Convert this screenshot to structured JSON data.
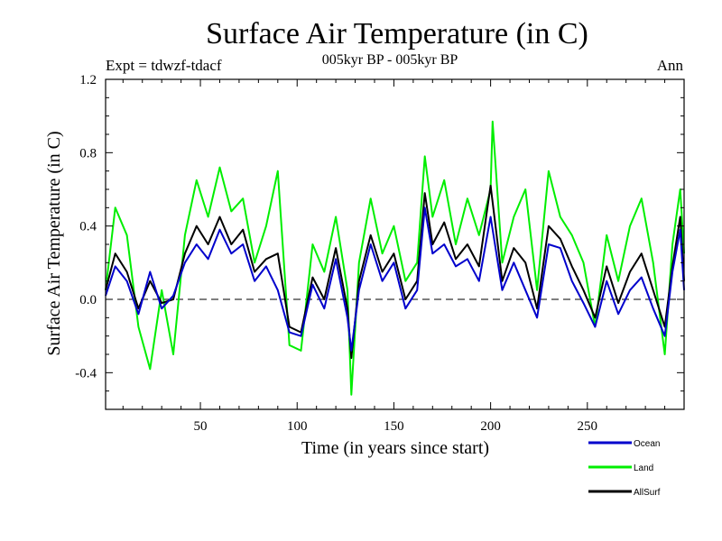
{
  "chart_data": {
    "type": "line",
    "title": "Surface Air Temperature (in C)",
    "subtitle": "005kyr BP - 005kyr BP",
    "experiment_label": "Expt = tdwzf-tdacf",
    "season_label": "Ann",
    "xlabel": "Time (in years since start)",
    "ylabel": "Surface Air Temperature (in C)",
    "xlim": [
      1,
      300
    ],
    "ylim": [
      -0.6,
      1.2
    ],
    "x_ticks": [
      50,
      100,
      150,
      200,
      250
    ],
    "x_tick_labels": [
      "50",
      "100",
      "150",
      "200",
      "250"
    ],
    "y_ticks": [
      -0.4,
      0.0,
      0.4,
      0.8,
      1.2
    ],
    "y_tick_labels": [
      "-0.4",
      "0.0",
      "0.4",
      "0.8",
      "1.2"
    ],
    "reference_line": 0.0,
    "legend_position": "bottom-right",
    "series": [
      {
        "name": "Ocean",
        "color": "#0000cc",
        "x": [
          1,
          6,
          12,
          18,
          24,
          30,
          36,
          42,
          48,
          54,
          60,
          66,
          72,
          78,
          84,
          90,
          96,
          102,
          108,
          114,
          120,
          126,
          128,
          132,
          138,
          144,
          150,
          156,
          162,
          166,
          170,
          176,
          182,
          188,
          194,
          200,
          206,
          212,
          218,
          224,
          230,
          236,
          242,
          248,
          254,
          260,
          266,
          272,
          278,
          284,
          290,
          294,
          298,
          300
        ],
        "values": [
          0.02,
          0.18,
          0.1,
          -0.08,
          0.15,
          -0.05,
          0.02,
          0.2,
          0.3,
          0.22,
          0.38,
          0.25,
          0.3,
          0.1,
          0.18,
          0.05,
          -0.18,
          -0.2,
          0.08,
          -0.05,
          0.22,
          -0.1,
          -0.28,
          0.05,
          0.3,
          0.1,
          0.2,
          -0.05,
          0.05,
          0.5,
          0.25,
          0.3,
          0.18,
          0.22,
          0.1,
          0.45,
          0.05,
          0.2,
          0.05,
          -0.1,
          0.3,
          0.28,
          0.1,
          -0.02,
          -0.15,
          0.1,
          -0.08,
          0.05,
          0.12,
          -0.05,
          -0.2,
          0.15,
          0.38,
          0.05
        ]
      },
      {
        "name": "Land",
        "color": "#00ee00",
        "x": [
          1,
          6,
          12,
          18,
          24,
          30,
          36,
          42,
          48,
          54,
          60,
          66,
          72,
          78,
          84,
          90,
          96,
          102,
          108,
          114,
          120,
          126,
          128,
          132,
          138,
          144,
          150,
          156,
          162,
          166,
          170,
          176,
          182,
          188,
          194,
          200,
          201,
          206,
          212,
          218,
          224,
          230,
          236,
          242,
          248,
          254,
          260,
          266,
          272,
          278,
          284,
          290,
          294,
          298,
          300
        ],
        "values": [
          0.05,
          0.5,
          0.35,
          -0.15,
          -0.38,
          0.05,
          -0.3,
          0.35,
          0.65,
          0.45,
          0.72,
          0.48,
          0.55,
          0.2,
          0.4,
          0.7,
          -0.25,
          -0.28,
          0.3,
          0.15,
          0.45,
          0.05,
          -0.52,
          0.2,
          0.55,
          0.25,
          0.4,
          0.1,
          0.2,
          0.78,
          0.45,
          0.65,
          0.3,
          0.55,
          0.35,
          0.6,
          0.97,
          0.2,
          0.45,
          0.6,
          0.05,
          0.7,
          0.45,
          0.35,
          0.2,
          -0.15,
          0.35,
          0.1,
          0.4,
          0.55,
          0.2,
          -0.3,
          0.3,
          0.6,
          0.25
        ]
      },
      {
        "name": "AllSurf",
        "color": "#000000",
        "x": [
          1,
          6,
          12,
          18,
          24,
          30,
          36,
          42,
          48,
          54,
          60,
          66,
          72,
          78,
          84,
          90,
          96,
          102,
          108,
          114,
          120,
          126,
          128,
          132,
          138,
          144,
          150,
          156,
          162,
          166,
          170,
          176,
          182,
          188,
          194,
          200,
          206,
          212,
          218,
          224,
          230,
          236,
          242,
          248,
          254,
          260,
          266,
          272,
          278,
          284,
          290,
          294,
          298,
          300
        ],
        "values": [
          0.05,
          0.25,
          0.15,
          -0.05,
          0.1,
          -0.02,
          0.0,
          0.25,
          0.4,
          0.3,
          0.45,
          0.3,
          0.38,
          0.15,
          0.22,
          0.25,
          -0.15,
          -0.18,
          0.12,
          0.0,
          0.28,
          -0.05,
          -0.32,
          0.1,
          0.35,
          0.15,
          0.25,
          0.0,
          0.1,
          0.58,
          0.3,
          0.42,
          0.22,
          0.3,
          0.18,
          0.62,
          0.1,
          0.28,
          0.2,
          -0.05,
          0.4,
          0.33,
          0.18,
          0.05,
          -0.1,
          0.18,
          -0.02,
          0.15,
          0.25,
          0.05,
          -0.15,
          0.18,
          0.45,
          0.1
        ]
      }
    ]
  }
}
